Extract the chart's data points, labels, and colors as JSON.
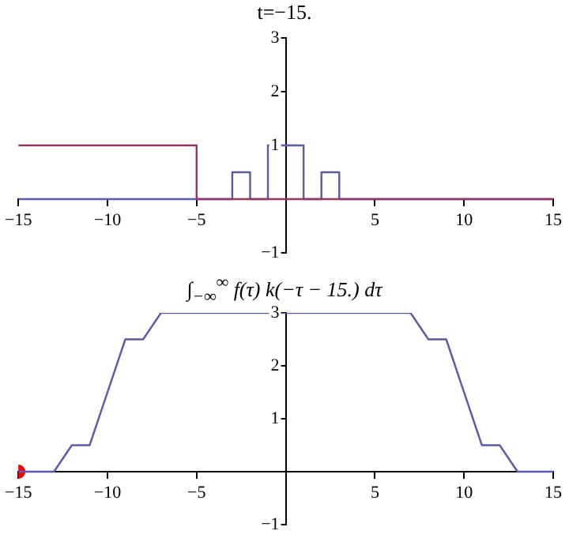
{
  "chart_data": [
    {
      "type": "line",
      "title": "t=−15.",
      "xlim": [
        -15,
        15
      ],
      "ylim": [
        -1,
        3
      ],
      "xticks": [
        -15,
        -10,
        -5,
        5,
        10,
        15
      ],
      "yticks": [
        -1,
        1,
        2,
        3
      ],
      "grid": false,
      "marker": "none",
      "series": [
        {
          "color": "#993366",
          "x": [
            -15,
            -5,
            -5,
            15
          ],
          "values": [
            1,
            1,
            0,
            0
          ]
        },
        {
          "color": "#5a5aa8",
          "x": [
            -15,
            -3,
            -3,
            -2,
            -2,
            -1,
            -1,
            1,
            1,
            2,
            2,
            3,
            3,
            15
          ],
          "values": [
            0,
            0,
            0.5,
            0.5,
            0,
            0,
            1,
            1,
            0,
            0,
            0.5,
            0.5,
            0,
            0
          ]
        }
      ]
    },
    {
      "type": "line",
      "title": "∫$_{−∞}$$^{∞}$ f(τ) k(−τ − 15.) dτ",
      "xlim": [
        -15,
        15
      ],
      "ylim": [
        -1,
        3
      ],
      "xticks": [
        -15,
        -10,
        -5,
        5,
        10,
        15
      ],
      "yticks": [
        -1,
        1,
        2,
        3
      ],
      "grid": false,
      "marker": "none",
      "series": [
        {
          "color": "#5a5aa8",
          "x": [
            -15,
            -13,
            -12,
            -11,
            -9,
            -8,
            -7,
            7,
            8,
            9,
            11,
            12,
            13,
            15
          ],
          "values": [
            0,
            0,
            0.5,
            0.5,
            2.5,
            2.5,
            3,
            3,
            2.5,
            2.5,
            0.5,
            0.5,
            0,
            0
          ]
        },
        {
          "type": "scatter",
          "color": "#ff0000",
          "marker": "circle",
          "x": [
            -15
          ],
          "values": [
            0
          ]
        }
      ]
    }
  ]
}
